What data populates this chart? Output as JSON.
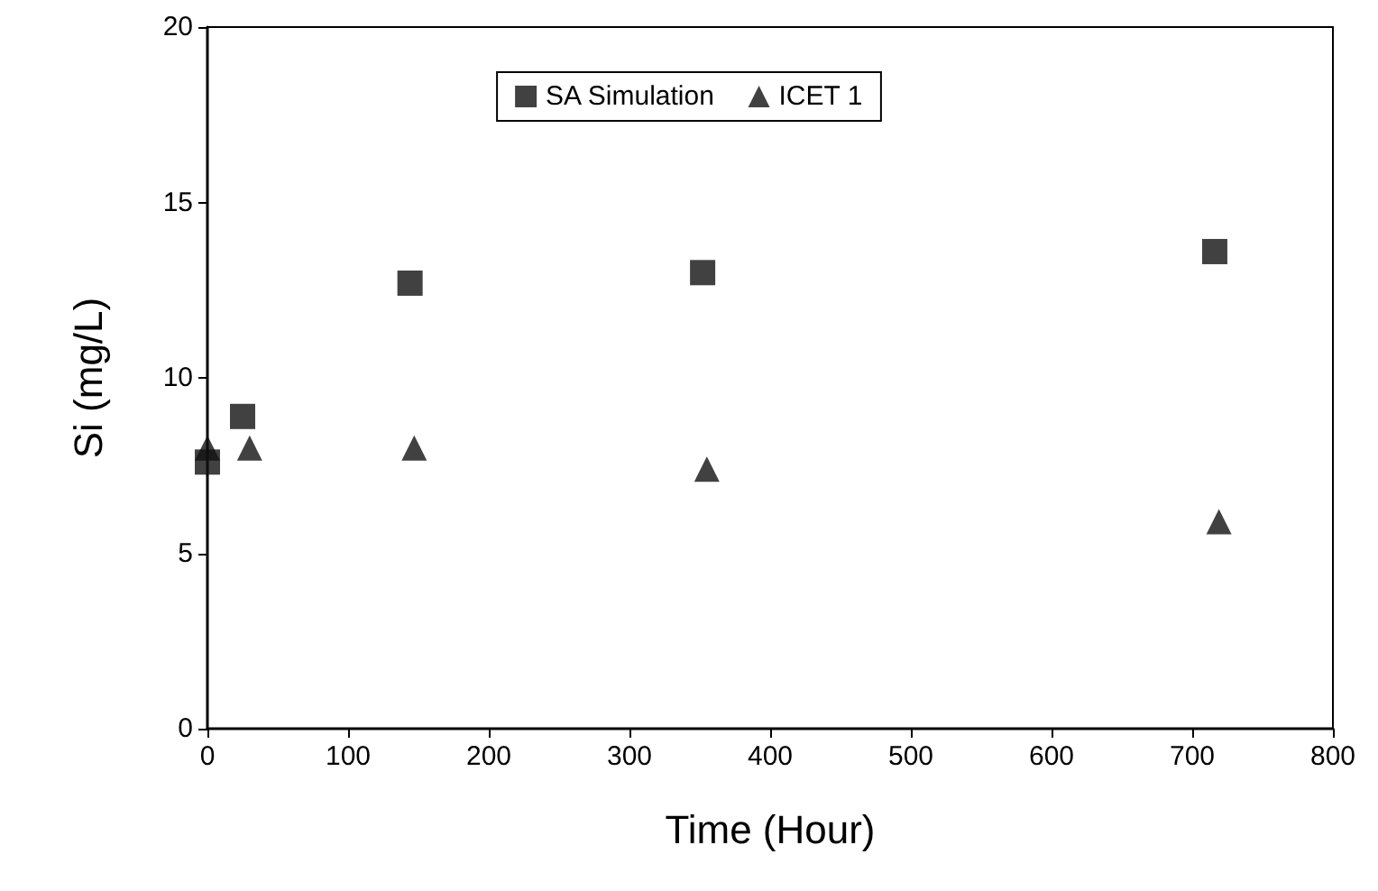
{
  "chart_data": {
    "type": "scatter",
    "xlabel": "Time (Hour)",
    "ylabel": "Si (mg/L)",
    "xlim": [
      0,
      800
    ],
    "xticks": [
      0,
      100,
      200,
      300,
      400,
      500,
      600,
      700,
      800
    ],
    "ylim": [
      0,
      20
    ],
    "yticks": [
      0,
      5,
      10,
      15,
      20
    ],
    "grid": false,
    "legend": "top",
    "series": [
      {
        "name": "SA Simulation",
        "color": "#111111",
        "marker": "square",
        "x": [
          0,
          25,
          144,
          352,
          716
        ],
        "values": [
          7.6,
          8.9,
          12.7,
          13.0,
          13.6
        ]
      },
      {
        "name": "ICET 1",
        "color": "#111111",
        "marker": "triangle",
        "x": [
          0,
          30,
          147,
          355,
          719
        ],
        "values": [
          8.0,
          8.0,
          8.0,
          7.4,
          5.9
        ]
      }
    ]
  }
}
